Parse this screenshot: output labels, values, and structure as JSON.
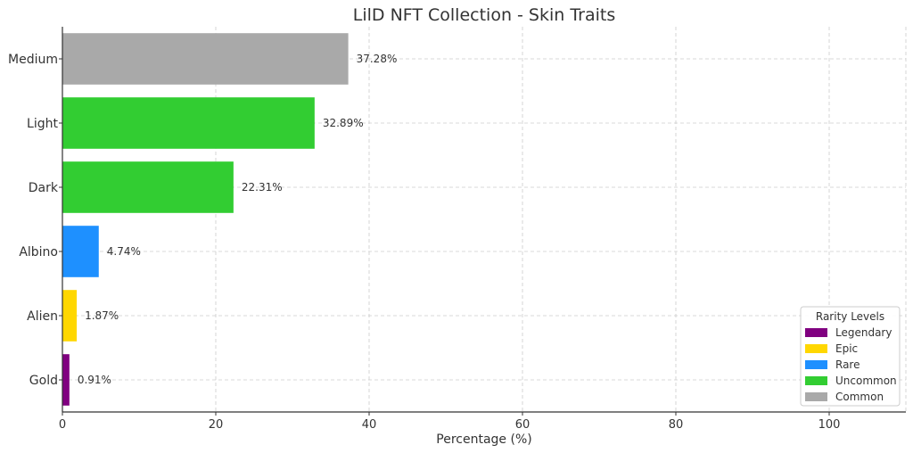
{
  "chart_data": {
    "type": "bar",
    "orientation": "horizontal",
    "title": "LilD NFT Collection - Skin Traits",
    "xlabel": "Percentage (%)",
    "ylabel": "",
    "xlim": [
      0,
      110
    ],
    "xticks": [
      0,
      20,
      40,
      60,
      80,
      100
    ],
    "grid": true,
    "categories": [
      "Gold",
      "Alien",
      "Albino",
      "Dark",
      "Light",
      "Medium"
    ],
    "values": [
      0.91,
      1.87,
      4.74,
      22.31,
      32.89,
      37.28
    ],
    "data_labels": [
      "0.91%",
      "1.87%",
      "4.74%",
      "22.31%",
      "32.89%",
      "37.28%"
    ],
    "bar_rarity": [
      "Legendary",
      "Epic",
      "Rare",
      "Uncommon",
      "Uncommon",
      "Common"
    ],
    "legend": {
      "title": "Rarity Levels",
      "position": "bottom-right",
      "entries": [
        {
          "label": "Legendary",
          "color": "#800080"
        },
        {
          "label": "Epic",
          "color": "#FFD700"
        },
        {
          "label": "Rare",
          "color": "#1E90FF"
        },
        {
          "label": "Uncommon",
          "color": "#32CD32"
        },
        {
          "label": "Common",
          "color": "#A9A9A9"
        }
      ]
    }
  }
}
